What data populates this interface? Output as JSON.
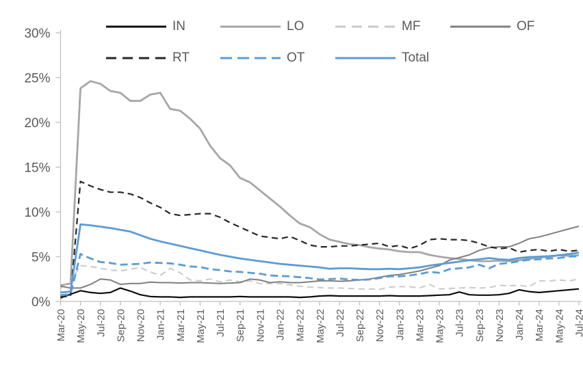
{
  "page": {
    "background": "#ffffff"
  },
  "axes": {
    "y_tick_labels": [
      "0%",
      "5%",
      "10%",
      "15%",
      "20%",
      "25%",
      "30%"
    ],
    "axis_color": "#c0c0c0",
    "label_color": "#595959"
  },
  "chart_data": {
    "type": "line",
    "title": "",
    "xlabel": "",
    "ylabel": "",
    "ylim": [
      0,
      30
    ],
    "ytick_step": 5,
    "ytick_format": "percent",
    "grid": false,
    "legend_position": "top",
    "x_tick_every": 2,
    "x_tick_labels": [
      "Mar-20",
      "May-20",
      "Jul-20",
      "Sep-20",
      "Nov-20",
      "Jan-21",
      "Mar-21",
      "May-21",
      "Jul-21",
      "Sep-21",
      "Nov-21",
      "Jan-22",
      "Mar-22",
      "May-22",
      "Jul-22",
      "Sep-22",
      "Nov-22",
      "Jan-23",
      "Mar-23",
      "May-23",
      "Jul-23",
      "Sep-23",
      "Nov-23",
      "Jan-24",
      "Mar-24",
      "May-24",
      "Jul-24"
    ],
    "categories": [
      "Mar-20",
      "Apr-20",
      "May-20",
      "Jun-20",
      "Jul-20",
      "Aug-20",
      "Sep-20",
      "Oct-20",
      "Nov-20",
      "Dec-20",
      "Jan-21",
      "Feb-21",
      "Mar-21",
      "Apr-21",
      "May-21",
      "Jun-21",
      "Jul-21",
      "Aug-21",
      "Sep-21",
      "Oct-21",
      "Nov-21",
      "Dec-21",
      "Jan-22",
      "Feb-22",
      "Mar-22",
      "Apr-22",
      "May-22",
      "Jun-22",
      "Jul-22",
      "Aug-22",
      "Sep-22",
      "Oct-22",
      "Nov-22",
      "Dec-22",
      "Jan-23",
      "Feb-23",
      "Mar-23",
      "Apr-23",
      "May-23",
      "Jun-23",
      "Jul-23",
      "Aug-23",
      "Sep-23",
      "Oct-23",
      "Nov-23",
      "Dec-23",
      "Jan-24",
      "Feb-24",
      "Mar-24",
      "Apr-24",
      "May-24",
      "Jun-24",
      "Jul-24"
    ],
    "series": [
      {
        "name": "IN",
        "color": "#0d0d0d",
        "style": "solid",
        "width": 2.2,
        "values": [
          0.4,
          0.8,
          1.2,
          1.0,
          0.9,
          1.0,
          1.5,
          1.15,
          0.75,
          0.55,
          0.5,
          0.5,
          0.45,
          0.5,
          0.5,
          0.5,
          0.5,
          0.5,
          0.55,
          0.5,
          0.5,
          0.5,
          0.5,
          0.5,
          0.45,
          0.5,
          0.6,
          0.65,
          0.6,
          0.6,
          0.6,
          0.6,
          0.6,
          0.65,
          0.6,
          0.6,
          0.6,
          0.65,
          0.7,
          0.75,
          1.05,
          0.75,
          0.7,
          0.7,
          0.75,
          0.9,
          1.3,
          1.1,
          1.0,
          1.1,
          1.2,
          1.3,
          1.4
        ]
      },
      {
        "name": "LO",
        "color": "#a6a6a6",
        "style": "solid",
        "width": 2.8,
        "values": [
          1.8,
          2.0,
          23.8,
          24.6,
          24.3,
          23.5,
          23.3,
          22.4,
          22.4,
          23.1,
          23.3,
          21.5,
          21.3,
          20.4,
          19.3,
          17.4,
          16.0,
          15.2,
          13.8,
          13.3,
          12.4,
          11.5,
          10.6,
          9.6,
          8.7,
          8.3,
          7.5,
          6.9,
          6.65,
          6.4,
          6.3,
          6.05,
          5.9,
          5.8,
          5.6,
          5.5,
          5.5,
          5.2,
          5.0,
          4.85,
          4.75,
          4.6,
          4.5,
          4.5,
          4.55,
          4.5,
          4.6,
          4.75,
          4.9,
          5.0,
          5.15,
          5.1,
          5.15
        ]
      },
      {
        "name": "MF",
        "color": "#c9c9c9",
        "style": "dashed",
        "width": 2.0,
        "values": [
          1.5,
          2.2,
          4.0,
          3.9,
          3.7,
          3.5,
          3.4,
          3.6,
          3.8,
          3.3,
          2.9,
          3.7,
          3.2,
          2.4,
          2.3,
          2.5,
          2.2,
          2.4,
          2.2,
          2.3,
          2.0,
          2.0,
          2.0,
          1.85,
          1.7,
          1.6,
          1.55,
          1.5,
          1.5,
          1.45,
          1.4,
          1.4,
          1.35,
          1.6,
          1.65,
          1.65,
          1.5,
          1.9,
          1.4,
          1.45,
          1.5,
          1.55,
          1.5,
          1.55,
          1.8,
          1.75,
          1.8,
          1.65,
          2.3,
          2.3,
          2.4,
          2.3,
          2.5
        ]
      },
      {
        "name": "OF",
        "color": "#7f7f7f",
        "style": "solid",
        "width": 2.0,
        "values": [
          1.7,
          1.5,
          1.5,
          1.9,
          2.5,
          2.4,
          1.9,
          2.0,
          2.0,
          2.15,
          2.1,
          2.1,
          2.05,
          2.1,
          2.1,
          2.05,
          2.0,
          2.05,
          2.1,
          2.5,
          2.4,
          2.1,
          2.2,
          2.1,
          2.1,
          2.2,
          2.3,
          2.3,
          2.25,
          2.3,
          2.4,
          2.5,
          2.7,
          2.9,
          3.0,
          3.2,
          3.4,
          3.7,
          4.0,
          4.6,
          4.9,
          5.2,
          5.7,
          6.0,
          6.1,
          6.1,
          6.5,
          7.0,
          7.2,
          7.5,
          7.8,
          8.1,
          8.4
        ]
      },
      {
        "name": "RT",
        "color": "#262626",
        "style": "dashed",
        "width": 2.2,
        "values": [
          0.5,
          0.6,
          13.4,
          12.9,
          12.5,
          12.2,
          12.2,
          12.0,
          11.6,
          11.0,
          10.5,
          9.8,
          9.6,
          9.7,
          9.8,
          9.8,
          9.4,
          8.8,
          8.3,
          7.8,
          7.3,
          7.15,
          7.0,
          7.25,
          6.8,
          6.3,
          6.1,
          6.1,
          6.2,
          6.2,
          6.3,
          6.4,
          6.5,
          6.1,
          6.25,
          5.9,
          6.25,
          6.9,
          7.0,
          6.9,
          6.9,
          6.8,
          6.5,
          6.1,
          5.9,
          6.0,
          5.5,
          5.7,
          5.8,
          5.6,
          5.8,
          5.6,
          5.7
        ]
      },
      {
        "name": "OT",
        "color": "#5b9bd5",
        "style": "dashed",
        "width": 2.8,
        "values": [
          0.7,
          0.8,
          5.3,
          4.8,
          4.4,
          4.3,
          4.1,
          4.15,
          4.2,
          4.35,
          4.3,
          4.25,
          4.1,
          3.9,
          3.85,
          3.6,
          3.5,
          3.35,
          3.3,
          3.2,
          3.1,
          2.9,
          2.85,
          2.8,
          2.7,
          2.6,
          2.45,
          2.5,
          2.55,
          2.45,
          2.4,
          2.45,
          2.6,
          2.8,
          2.8,
          2.9,
          3.05,
          3.3,
          3.2,
          3.6,
          3.7,
          3.8,
          4.1,
          3.7,
          4.2,
          4.3,
          4.5,
          4.65,
          4.7,
          4.8,
          4.85,
          5.0,
          5.05
        ]
      },
      {
        "name": "Total",
        "color": "#5b9bd5",
        "style": "solid",
        "width": 2.8,
        "values": [
          1.0,
          1.1,
          8.6,
          8.5,
          8.35,
          8.2,
          8.0,
          7.8,
          7.4,
          7.0,
          6.7,
          6.45,
          6.2,
          5.95,
          5.7,
          5.45,
          5.2,
          5.0,
          4.8,
          4.65,
          4.5,
          4.35,
          4.2,
          4.1,
          4.0,
          3.9,
          3.8,
          3.65,
          3.7,
          3.7,
          3.65,
          3.6,
          3.6,
          3.65,
          3.6,
          3.7,
          3.8,
          4.0,
          4.15,
          4.3,
          4.45,
          4.6,
          4.7,
          4.85,
          4.7,
          4.65,
          4.85,
          4.95,
          5.0,
          5.05,
          5.15,
          5.3,
          5.45
        ]
      }
    ],
    "legend_rows": [
      [
        0,
        1,
        2,
        3
      ],
      [
        4,
        5,
        6
      ]
    ]
  }
}
